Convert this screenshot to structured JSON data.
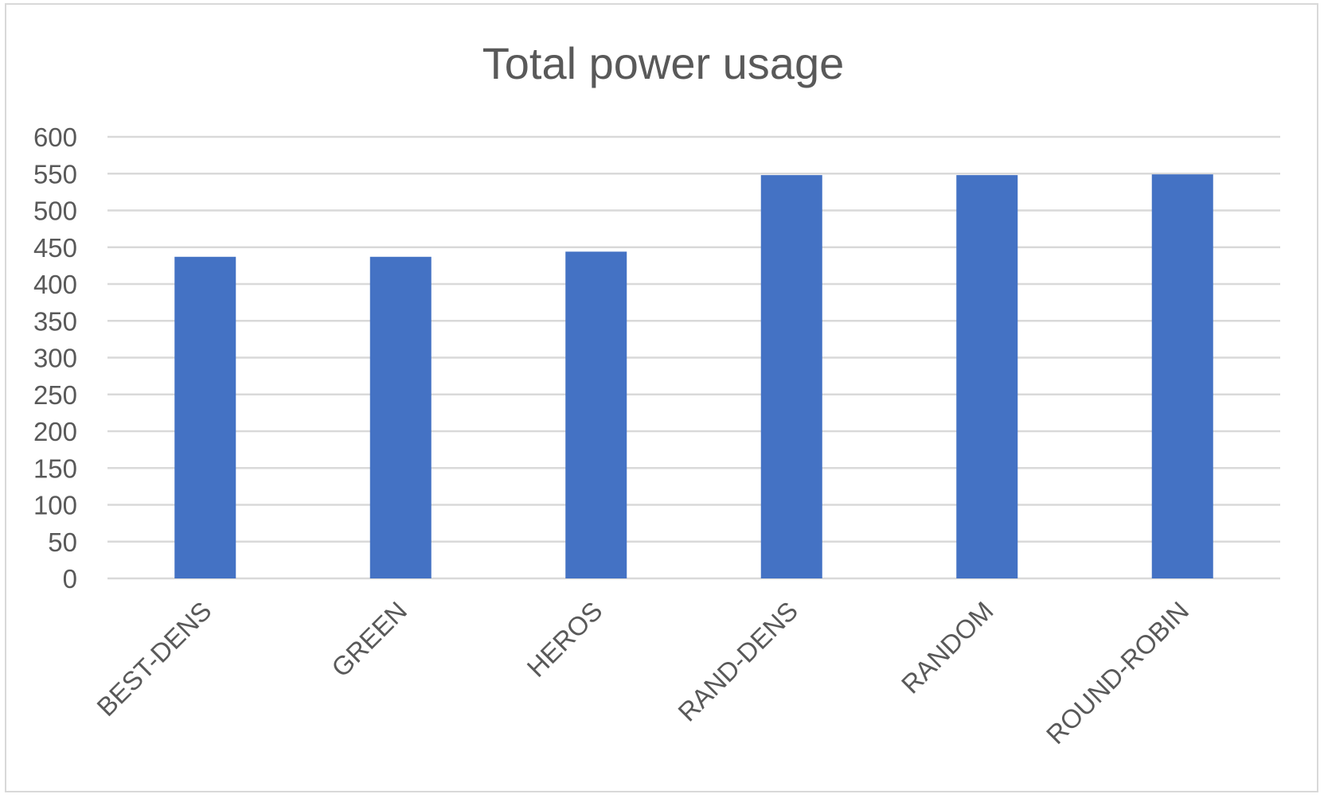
{
  "chart_data": {
    "type": "bar",
    "title": "Total power usage",
    "xlabel": "",
    "ylabel": "",
    "categories": [
      "BEST-DENS",
      "GREEN",
      "HEROS",
      "RAND-DENS",
      "RANDOM",
      "ROUND-ROBIN"
    ],
    "values": [
      437,
      437,
      444,
      548,
      548,
      549
    ],
    "ylim": [
      0,
      600
    ],
    "yticks": [
      0,
      50,
      100,
      150,
      200,
      250,
      300,
      350,
      400,
      450,
      500,
      550,
      600
    ],
    "grid": true,
    "legend": "none",
    "bar_color": "#4472C4",
    "gridline_color": "#d9d9d9",
    "text_color": "#595959"
  }
}
